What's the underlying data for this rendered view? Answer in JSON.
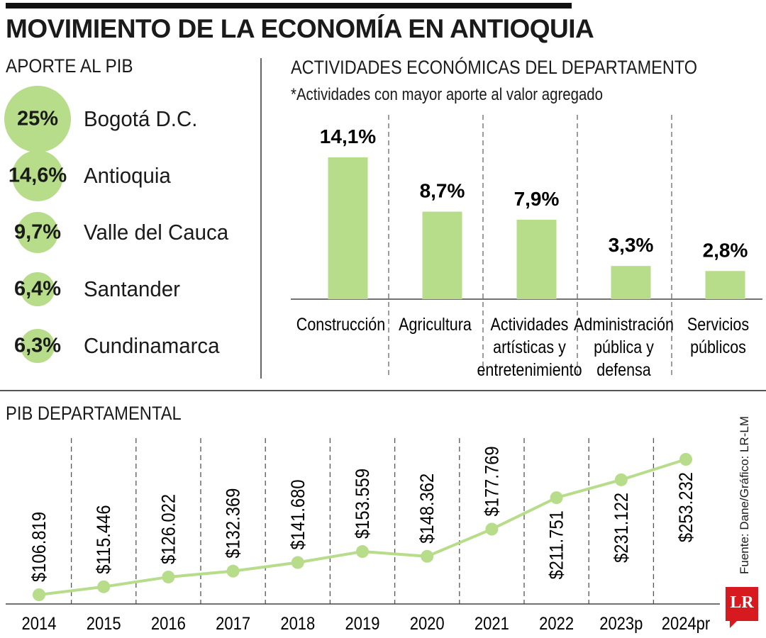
{
  "title": "MOVIMIENTO DE LA ECONOMÍA EN ANTIOQUIA",
  "source": "Fuente: Dane/Gráfico: LR-LM",
  "logo_text": "LR",
  "colors": {
    "accent": "#b7dc8a",
    "line": "#b7dc8a",
    "text": "#1a1a1a"
  },
  "chart_data": [
    {
      "type": "bubble",
      "title": "APORTE AL PIB",
      "categories": [
        "Bogotá D.C.",
        "Antioquia",
        "Valle del Cauca",
        "Santander",
        "Cundinamarca"
      ],
      "values": [
        25,
        14.6,
        9.7,
        6.4,
        6.3
      ],
      "labels": [
        "25%",
        "14,6%",
        "9,7%",
        "6,4%",
        "6,3%"
      ]
    },
    {
      "type": "bar",
      "title": "ACTIVIDADES ECONÓMICAS DEL DEPARTAMENTO",
      "subtitle": "*Actividades con mayor aporte al valor agregado",
      "categories": [
        [
          "Construcción"
        ],
        [
          "Agricultura"
        ],
        [
          "Actividades",
          "artísticas y",
          "entretenimiento"
        ],
        [
          "Administración",
          "pública y",
          "defensa"
        ],
        [
          "Servicios",
          "públicos"
        ]
      ],
      "values": [
        14.1,
        8.7,
        7.9,
        3.3,
        2.8
      ],
      "labels": [
        "14,1%",
        "8,7%",
        "7,9%",
        "3,3%",
        "2,8%"
      ],
      "ylim": [
        0,
        14.1
      ]
    },
    {
      "type": "line",
      "title": "PIB DEPARTAMENTAL",
      "x": [
        "2014",
        "2015",
        "2016",
        "2017",
        "2018",
        "2019",
        "2020",
        "2021",
        "2022",
        "2023p",
        "2024pr"
      ],
      "values": [
        106819,
        115446,
        126022,
        132369,
        141680,
        153559,
        148362,
        177769,
        211751,
        231122,
        253232
      ],
      "labels": [
        "$106.819",
        "$115.446",
        "$126.022",
        "$132.369",
        "$141.680",
        "$153.559",
        "$148.362",
        "$177.769",
        "$211.751",
        "$231.122",
        "$253.232"
      ],
      "label_placement": [
        "above",
        "above",
        "above",
        "above",
        "above",
        "above",
        "above",
        "above",
        "below",
        "below",
        "below"
      ]
    }
  ]
}
